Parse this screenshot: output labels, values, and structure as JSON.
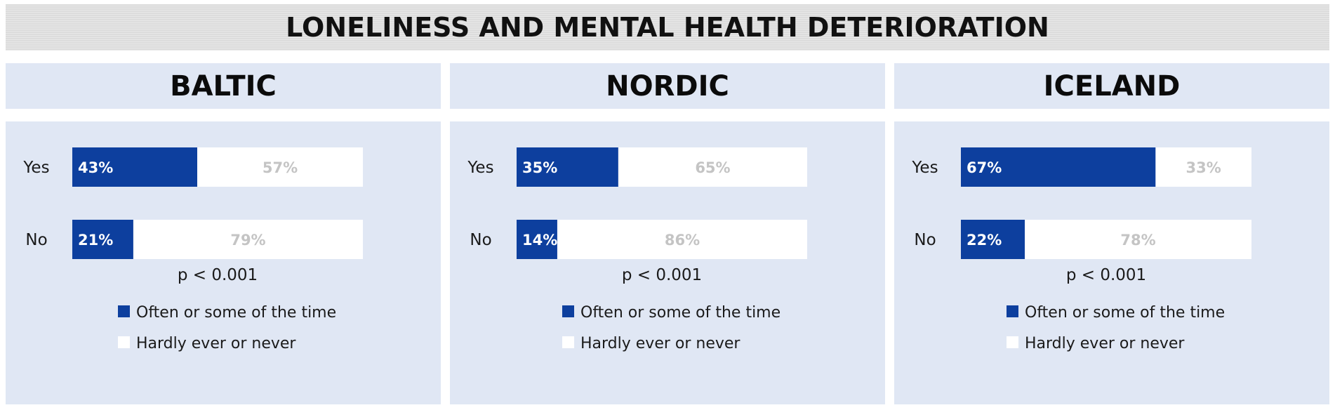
{
  "title": "LONELINESS AND MENTAL HEALTH DETERIORATION",
  "colors": {
    "often": "#0d3f9e",
    "never": "#ffffff",
    "panel_bg": "#e0e7f4"
  },
  "chart_data": [
    {
      "type": "bar",
      "stacked": true,
      "orientation": "horizontal",
      "title": "BALTIC",
      "categories": [
        "Yes",
        "No"
      ],
      "series": [
        {
          "name": "Often or some of the time",
          "values": [
            43,
            21
          ]
        },
        {
          "name": "Hardly ever or never",
          "values": [
            57,
            79
          ]
        }
      ],
      "xlim": [
        0,
        100
      ],
      "annotation": "p < 0.001",
      "legend": "bottom"
    },
    {
      "type": "bar",
      "stacked": true,
      "orientation": "horizontal",
      "title": "NORDIC",
      "categories": [
        "Yes",
        "No"
      ],
      "series": [
        {
          "name": "Often or some of the time",
          "values": [
            35,
            14
          ]
        },
        {
          "name": "Hardly ever or never",
          "values": [
            65,
            86
          ]
        }
      ],
      "xlim": [
        0,
        100
      ],
      "annotation": "p < 0.001",
      "legend": "bottom"
    },
    {
      "type": "bar",
      "stacked": true,
      "orientation": "horizontal",
      "title": "ICELAND",
      "categories": [
        "Yes",
        "No"
      ],
      "series": [
        {
          "name": "Often or some of the time",
          "values": [
            67,
            22
          ]
        },
        {
          "name": "Hardly ever or never",
          "values": [
            33,
            78
          ]
        }
      ],
      "xlim": [
        0,
        100
      ],
      "annotation": "p < 0.001",
      "legend": "bottom"
    }
  ]
}
